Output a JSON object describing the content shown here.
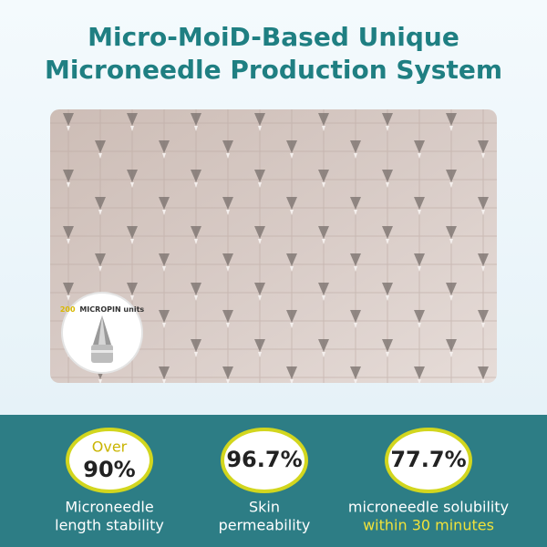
{
  "header": {
    "title_lines": [
      "Micro-MoiD-Based Unique",
      "Microneedle Production System"
    ]
  },
  "inset": {
    "count": "200",
    "label": "MICROPIN units"
  },
  "stats": [
    {
      "prefix": "Over",
      "value": "90%",
      "label_lines": [
        "Microneedle",
        "length stability"
      ]
    },
    {
      "value": "96.7%",
      "label_lines": [
        "Skin",
        "permeability"
      ]
    },
    {
      "value": "77.7%",
      "label_lines": [
        "microneedle solubility"
      ],
      "highlight": "within 30 minutes"
    }
  ]
}
